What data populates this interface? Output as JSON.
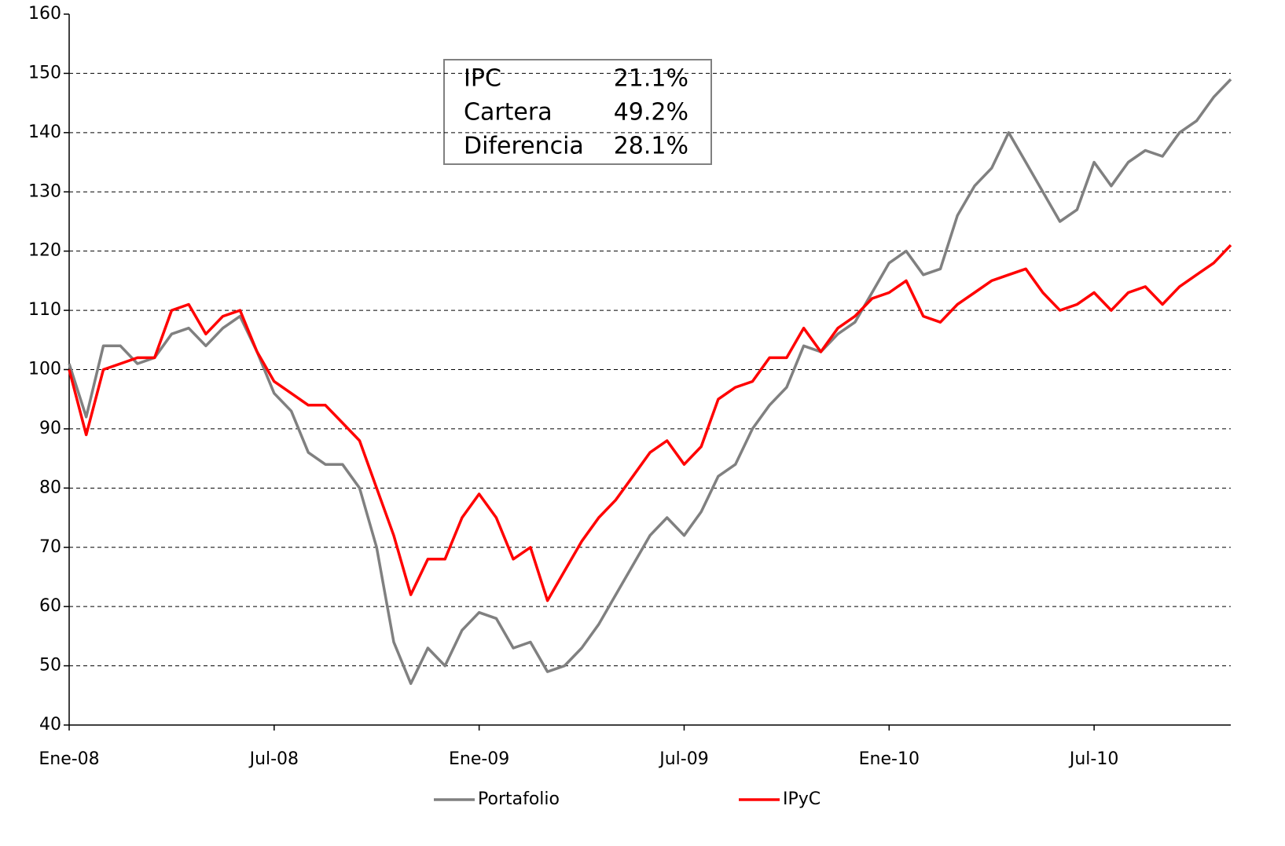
{
  "chart_data": {
    "type": "line",
    "categories": [
      "Ene-08",
      null,
      null,
      null,
      null,
      null,
      null,
      null,
      null,
      null,
      null,
      null,
      "Jul-08",
      null,
      null,
      null,
      null,
      null,
      null,
      null,
      null,
      null,
      null,
      null,
      "Ene-09",
      null,
      null,
      null,
      null,
      null,
      null,
      null,
      null,
      null,
      null,
      null,
      "Jul-09",
      null,
      null,
      null,
      null,
      null,
      null,
      null,
      null,
      null,
      null,
      null,
      "Ene-10",
      null,
      null,
      null,
      null,
      null,
      null,
      null,
      null,
      null,
      null,
      null,
      "Jul-10",
      null,
      null,
      null,
      null,
      null,
      null,
      null,
      null
    ],
    "series": [
      {
        "name": "Portafolio",
        "color": "#808080",
        "values": [
          101,
          92,
          104,
          104,
          101,
          102,
          106,
          107,
          104,
          107,
          109,
          103,
          96,
          93,
          86,
          84,
          84,
          80,
          70,
          54,
          47,
          53,
          50,
          56,
          59,
          58,
          53,
          54,
          49,
          50,
          53,
          57,
          62,
          67,
          72,
          75,
          72,
          76,
          82,
          84,
          90,
          94,
          97,
          104,
          103,
          106,
          108,
          113,
          118,
          120,
          116,
          117,
          126,
          131,
          134,
          140,
          135,
          130,
          125,
          127,
          135,
          131,
          135,
          137,
          136,
          140,
          142,
          146,
          149
        ]
      },
      {
        "name": "IPyC",
        "color": "#ff0000",
        "values": [
          100,
          89,
          100,
          101,
          102,
          102,
          110,
          111,
          106,
          109,
          110,
          103,
          98,
          96,
          94,
          94,
          91,
          88,
          80,
          72,
          62,
          68,
          68,
          75,
          79,
          75,
          68,
          70,
          61,
          66,
          71,
          75,
          78,
          82,
          86,
          88,
          84,
          87,
          95,
          97,
          98,
          102,
          102,
          107,
          103,
          107,
          109,
          112,
          113,
          115,
          109,
          108,
          111,
          113,
          115,
          116,
          117,
          113,
          110,
          111,
          113,
          110,
          113,
          114,
          111,
          114,
          116,
          118,
          121
        ]
      }
    ],
    "ylim": [
      40,
      160
    ],
    "yticks": [
      40,
      50,
      60,
      70,
      80,
      90,
      100,
      110,
      120,
      130,
      140,
      150,
      160
    ],
    "grid": true,
    "annotation": [
      [
        "IPC",
        "21.1%"
      ],
      [
        "Cartera",
        "49.2%"
      ],
      [
        "Diferencia",
        "28.1%"
      ]
    ]
  }
}
